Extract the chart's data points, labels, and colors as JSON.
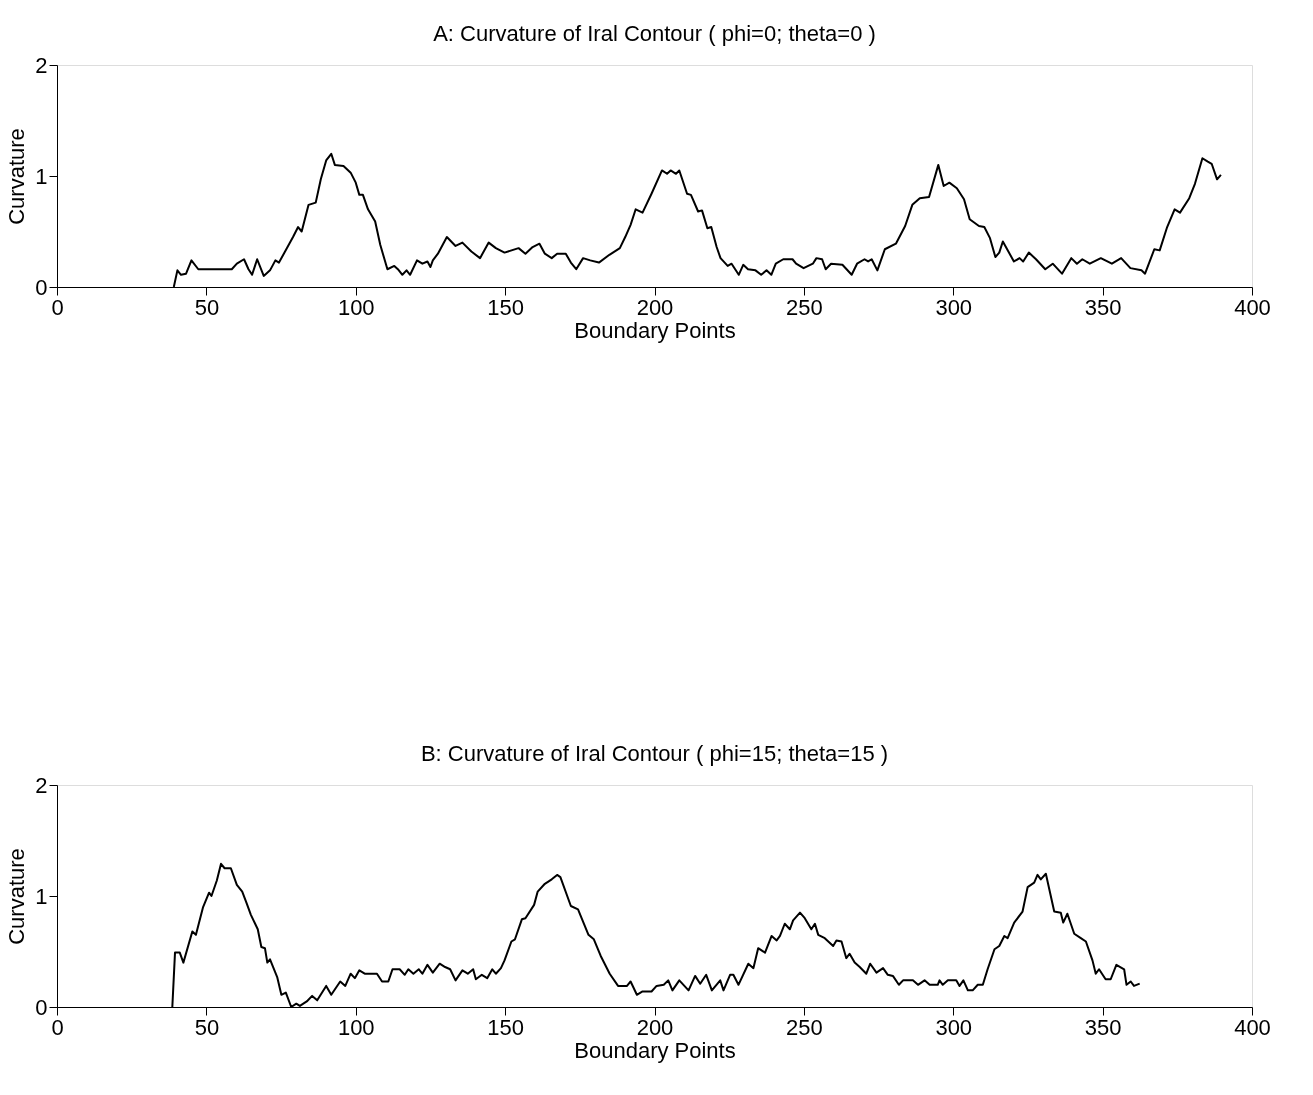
{
  "chart_data": [
    {
      "type": "line",
      "title": "A:       Curvature of Iral Contour ( phi=0; theta=0 )",
      "xlabel": "Boundary Points",
      "ylabel": "Curvature",
      "xlim": [
        0,
        400
      ],
      "ylim": [
        0,
        2
      ],
      "xticks": [
        0,
        50,
        100,
        150,
        200,
        250,
        300,
        350,
        400
      ],
      "yticks": [
        0,
        1,
        2
      ],
      "grid": false,
      "marker": "none",
      "line_style": "solid",
      "series": [
        {
          "color": "#000000",
          "x": [
            39.1,
            40.3,
            41.5,
            43.2,
            45.0,
            47.3,
            58.5,
            60.2,
            62.6,
            64.1,
            65.3,
            67.0,
            69.2,
            71.3,
            73.1,
            74.3,
            79.0,
            80.7,
            81.9,
            84.2,
            86.6,
            88.3,
            90.1,
            91.8,
            93.0,
            95.9,
            98.3,
            100.0,
            101.2,
            102.4,
            104.1,
            106.5,
            108.2,
            110.6,
            112.9,
            114.1,
            115.6,
            117.0,
            118.2,
            120.5,
            122.3,
            124.0,
            125.0,
            125.8,
            127.5,
            130.5,
            133.4,
            135.7,
            138.7,
            141.6,
            144.5,
            146.9,
            149.8,
            154.5,
            156.8,
            159.2,
            161.5,
            163.3,
            165.6,
            167.4,
            170.3,
            172.0,
            173.8,
            176.1,
            178.5,
            181.4,
            184.9,
            188.4,
            190.2,
            192.0,
            193.7,
            196.0,
            199.0,
            202.5,
            204.2,
            205.4,
            207.2,
            208.3,
            210.9,
            212.2,
            214.6,
            215.9,
            217.7,
            219.0,
            220.8,
            222.1,
            224.5,
            225.8,
            228.2,
            229.7,
            231.3,
            233.8,
            235.7,
            237.5,
            239.1,
            240.6,
            243.1,
            246.2,
            247.4,
            249.9,
            253.0,
            254.2,
            256.1,
            257.3,
            259.1,
            262.9,
            266.0,
            267.8,
            270.3,
            271.5,
            272.7,
            274.6,
            277.1,
            280.8,
            283.9,
            286.3,
            288.8,
            291.9,
            295.0,
            296.8,
            298.7,
            301.2,
            303.6,
            305.5,
            308.6,
            310.4,
            312.3,
            314.1,
            315.4,
            316.6,
            320.3,
            322.2,
            323.4,
            325.3,
            327.7,
            330.8,
            333.3,
            336.4,
            339.5,
            341.4,
            343.2,
            345.7,
            349.4,
            353.1,
            356.2,
            359.3,
            363.0,
            364.2,
            367.3,
            369.1,
            371.6,
            374.1,
            375.9,
            379.0,
            380.9,
            383.4,
            385.2,
            386.5,
            388.3,
            389.6
          ],
          "values": [
            0.0,
            0.15,
            0.11,
            0.12,
            0.24,
            0.16,
            0.16,
            0.21,
            0.25,
            0.16,
            0.11,
            0.25,
            0.1,
            0.15,
            0.24,
            0.22,
            0.45,
            0.54,
            0.5,
            0.74,
            0.76,
            0.97,
            1.14,
            1.2,
            1.1,
            1.09,
            1.03,
            0.94,
            0.83,
            0.83,
            0.7,
            0.59,
            0.38,
            0.16,
            0.19,
            0.16,
            0.11,
            0.15,
            0.11,
            0.24,
            0.21,
            0.23,
            0.18,
            0.24,
            0.3,
            0.45,
            0.37,
            0.4,
            0.32,
            0.26,
            0.4,
            0.35,
            0.31,
            0.35,
            0.3,
            0.36,
            0.39,
            0.3,
            0.26,
            0.3,
            0.3,
            0.22,
            0.16,
            0.26,
            0.24,
            0.22,
            0.29,
            0.35,
            0.45,
            0.56,
            0.7,
            0.67,
            0.84,
            1.05,
            1.02,
            1.05,
            1.02,
            1.05,
            0.84,
            0.83,
            0.68,
            0.69,
            0.53,
            0.54,
            0.36,
            0.26,
            0.19,
            0.21,
            0.11,
            0.2,
            0.16,
            0.15,
            0.11,
            0.15,
            0.11,
            0.21,
            0.25,
            0.25,
            0.21,
            0.17,
            0.21,
            0.26,
            0.25,
            0.16,
            0.21,
            0.2,
            0.11,
            0.21,
            0.25,
            0.23,
            0.25,
            0.15,
            0.34,
            0.39,
            0.55,
            0.74,
            0.8,
            0.81,
            1.1,
            0.91,
            0.94,
            0.89,
            0.79,
            0.61,
            0.55,
            0.54,
            0.44,
            0.27,
            0.31,
            0.41,
            0.23,
            0.26,
            0.23,
            0.31,
            0.25,
            0.16,
            0.21,
            0.12,
            0.26,
            0.21,
            0.25,
            0.21,
            0.26,
            0.21,
            0.26,
            0.17,
            0.15,
            0.12,
            0.34,
            0.33,
            0.54,
            0.7,
            0.67,
            0.8,
            0.93,
            1.16,
            1.13,
            1.11,
            0.97,
            1.01
          ]
        }
      ]
    },
    {
      "type": "line",
      "title": "B:       Curvature of Iral Contour ( phi=15; theta=15 )",
      "xlabel": "Boundary Points",
      "ylabel": "Curvature",
      "xlim": [
        0,
        400
      ],
      "ylim": [
        0,
        2
      ],
      "xticks": [
        0,
        50,
        100,
        150,
        200,
        250,
        300,
        350,
        400
      ],
      "yticks": [
        0,
        1,
        2
      ],
      "grid": false,
      "marker": "none",
      "line_style": "solid",
      "series": [
        {
          "color": "#000000",
          "x": [
            38.6,
            39.5,
            41.1,
            42.3,
            45.3,
            46.5,
            48.9,
            50.9,
            51.7,
            53.5,
            54.9,
            56.1,
            58.2,
            60.2,
            62.0,
            63.4,
            64.9,
            67.2,
            68.4,
            69.6,
            70.4,
            71.3,
            73.7,
            75.1,
            76.6,
            78.4,
            80.1,
            81.3,
            83.6,
            85.4,
            87.1,
            90.1,
            91.8,
            94.8,
            96.5,
            98.3,
            99.7,
            101.2,
            103.0,
            107.1,
            108.8,
            110.9,
            112.3,
            114.7,
            116.4,
            117.6,
            119.3,
            121.1,
            122.3,
            124.0,
            125.8,
            128.1,
            129.9,
            131.6,
            133.4,
            135.7,
            137.5,
            139.3,
            140.2,
            142.2,
            144.0,
            145.7,
            146.9,
            148.6,
            149.8,
            152.1,
            153.3,
            155.6,
            156.8,
            159.7,
            160.9,
            163.3,
            165.6,
            167.4,
            168.5,
            172.0,
            174.4,
            177.9,
            179.7,
            182.0,
            185.0,
            187.8,
            190.8,
            192.0,
            194.1,
            196.0,
            199.0,
            200.7,
            203.1,
            204.6,
            206.0,
            208.3,
            211.4,
            213.6,
            215.3,
            217.3,
            219.2,
            222.0,
            223.1,
            225.3,
            226.4,
            228.1,
            231.4,
            233.1,
            234.7,
            237.0,
            239.2,
            240.9,
            242.0,
            243.6,
            245.3,
            246.4,
            248.7,
            250.3,
            252.5,
            253.7,
            254.8,
            257.0,
            259.8,
            260.9,
            262.6,
            264.2,
            265.3,
            267.0,
            268.7,
            270.9,
            272.2,
            274.3,
            276.5,
            278.1,
            279.8,
            281.8,
            283.2,
            286.5,
            288.2,
            290.4,
            292.1,
            294.8,
            295.4,
            296.5,
            298.2,
            301.0,
            302.1,
            303.4,
            304.9,
            306.5,
            308.2,
            309.9,
            311.5,
            313.8,
            315.4,
            317.1,
            318.2,
            320.4,
            323.2,
            324.9,
            327.1,
            328.2,
            329.3,
            331.0,
            333.8,
            336.0,
            336.8,
            338.2,
            340.5,
            342.7,
            344.4,
            346.6,
            347.7,
            348.8,
            351.0,
            352.7,
            354.6,
            357.2,
            358.0,
            359.4,
            360.5,
            362.4
          ],
          "values": [
            0.0,
            0.49,
            0.49,
            0.4,
            0.68,
            0.65,
            0.9,
            1.03,
            1.0,
            1.14,
            1.29,
            1.25,
            1.25,
            1.1,
            1.04,
            0.94,
            0.83,
            0.7,
            0.54,
            0.53,
            0.4,
            0.43,
            0.27,
            0.11,
            0.13,
            0.0,
            0.03,
            0.01,
            0.05,
            0.1,
            0.06,
            0.19,
            0.11,
            0.23,
            0.19,
            0.3,
            0.26,
            0.33,
            0.3,
            0.3,
            0.23,
            0.23,
            0.34,
            0.34,
            0.29,
            0.34,
            0.3,
            0.34,
            0.3,
            0.38,
            0.31,
            0.39,
            0.36,
            0.34,
            0.24,
            0.33,
            0.3,
            0.34,
            0.25,
            0.29,
            0.26,
            0.34,
            0.3,
            0.35,
            0.42,
            0.59,
            0.61,
            0.79,
            0.8,
            0.92,
            1.04,
            1.11,
            1.15,
            1.19,
            1.17,
            0.91,
            0.88,
            0.65,
            0.61,
            0.46,
            0.3,
            0.19,
            0.19,
            0.23,
            0.11,
            0.14,
            0.14,
            0.19,
            0.2,
            0.24,
            0.15,
            0.24,
            0.15,
            0.28,
            0.21,
            0.29,
            0.15,
            0.24,
            0.15,
            0.29,
            0.29,
            0.2,
            0.39,
            0.35,
            0.53,
            0.49,
            0.64,
            0.6,
            0.64,
            0.75,
            0.7,
            0.78,
            0.85,
            0.8,
            0.7,
            0.75,
            0.65,
            0.62,
            0.55,
            0.6,
            0.59,
            0.44,
            0.48,
            0.4,
            0.36,
            0.3,
            0.39,
            0.31,
            0.35,
            0.29,
            0.28,
            0.2,
            0.24,
            0.24,
            0.2,
            0.24,
            0.2,
            0.2,
            0.24,
            0.2,
            0.24,
            0.24,
            0.19,
            0.24,
            0.15,
            0.15,
            0.2,
            0.2,
            0.34,
            0.52,
            0.55,
            0.64,
            0.62,
            0.76,
            0.86,
            1.08,
            1.12,
            1.19,
            1.15,
            1.2,
            0.86,
            0.85,
            0.76,
            0.84,
            0.66,
            0.62,
            0.59,
            0.42,
            0.3,
            0.34,
            0.25,
            0.25,
            0.38,
            0.34,
            0.2,
            0.23,
            0.19,
            0.21
          ]
        }
      ]
    }
  ]
}
